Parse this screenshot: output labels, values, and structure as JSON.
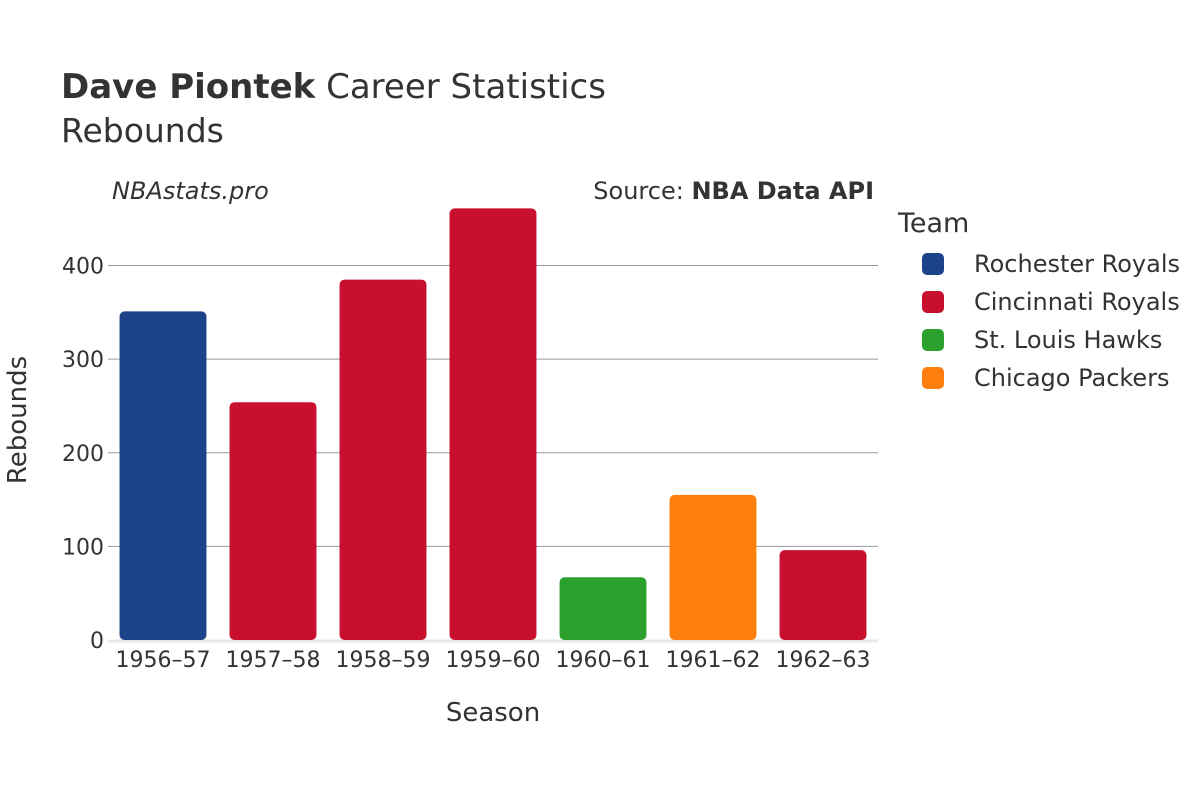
{
  "header": {
    "player": "Dave Piontek",
    "title_rest": "Career Statistics",
    "subtitle": "Rebounds",
    "brand": "NBAstats.pro",
    "source_prefix": "Source: ",
    "source_name": "NBA Data API"
  },
  "legend": {
    "title": "Team",
    "items": [
      {
        "label": "Rochester Royals",
        "color": "#1c4289"
      },
      {
        "label": "Cincinnati Royals",
        "color": "#c8102e"
      },
      {
        "label": "St. Louis Hawks",
        "color": "#2ca02c"
      },
      {
        "label": "Chicago Packers",
        "color": "#ff7f0e"
      }
    ]
  },
  "chart_data": {
    "type": "bar",
    "title": "Dave Piontek Career Statistics",
    "subtitle": "Rebounds",
    "xlabel": "Season",
    "ylabel": "Rebounds",
    "ylim": [
      0,
      470
    ],
    "yticks": [
      0,
      100,
      200,
      300,
      400
    ],
    "grid": true,
    "categories": [
      "1956–57",
      "1957–58",
      "1958–59",
      "1959–60",
      "1960–61",
      "1961–62",
      "1962–63"
    ],
    "values": [
      351,
      254,
      385,
      461,
      67,
      155,
      96
    ],
    "teams": [
      "Rochester Royals",
      "Cincinnati Royals",
      "Cincinnati Royals",
      "Cincinnati Royals",
      "St. Louis Hawks",
      "Chicago Packers",
      "Cincinnati Royals"
    ],
    "colors": [
      "#1c4289",
      "#c8102e",
      "#c8102e",
      "#c8102e",
      "#2ca02c",
      "#ff7f0e",
      "#c8102e"
    ],
    "legend_position": "right"
  }
}
